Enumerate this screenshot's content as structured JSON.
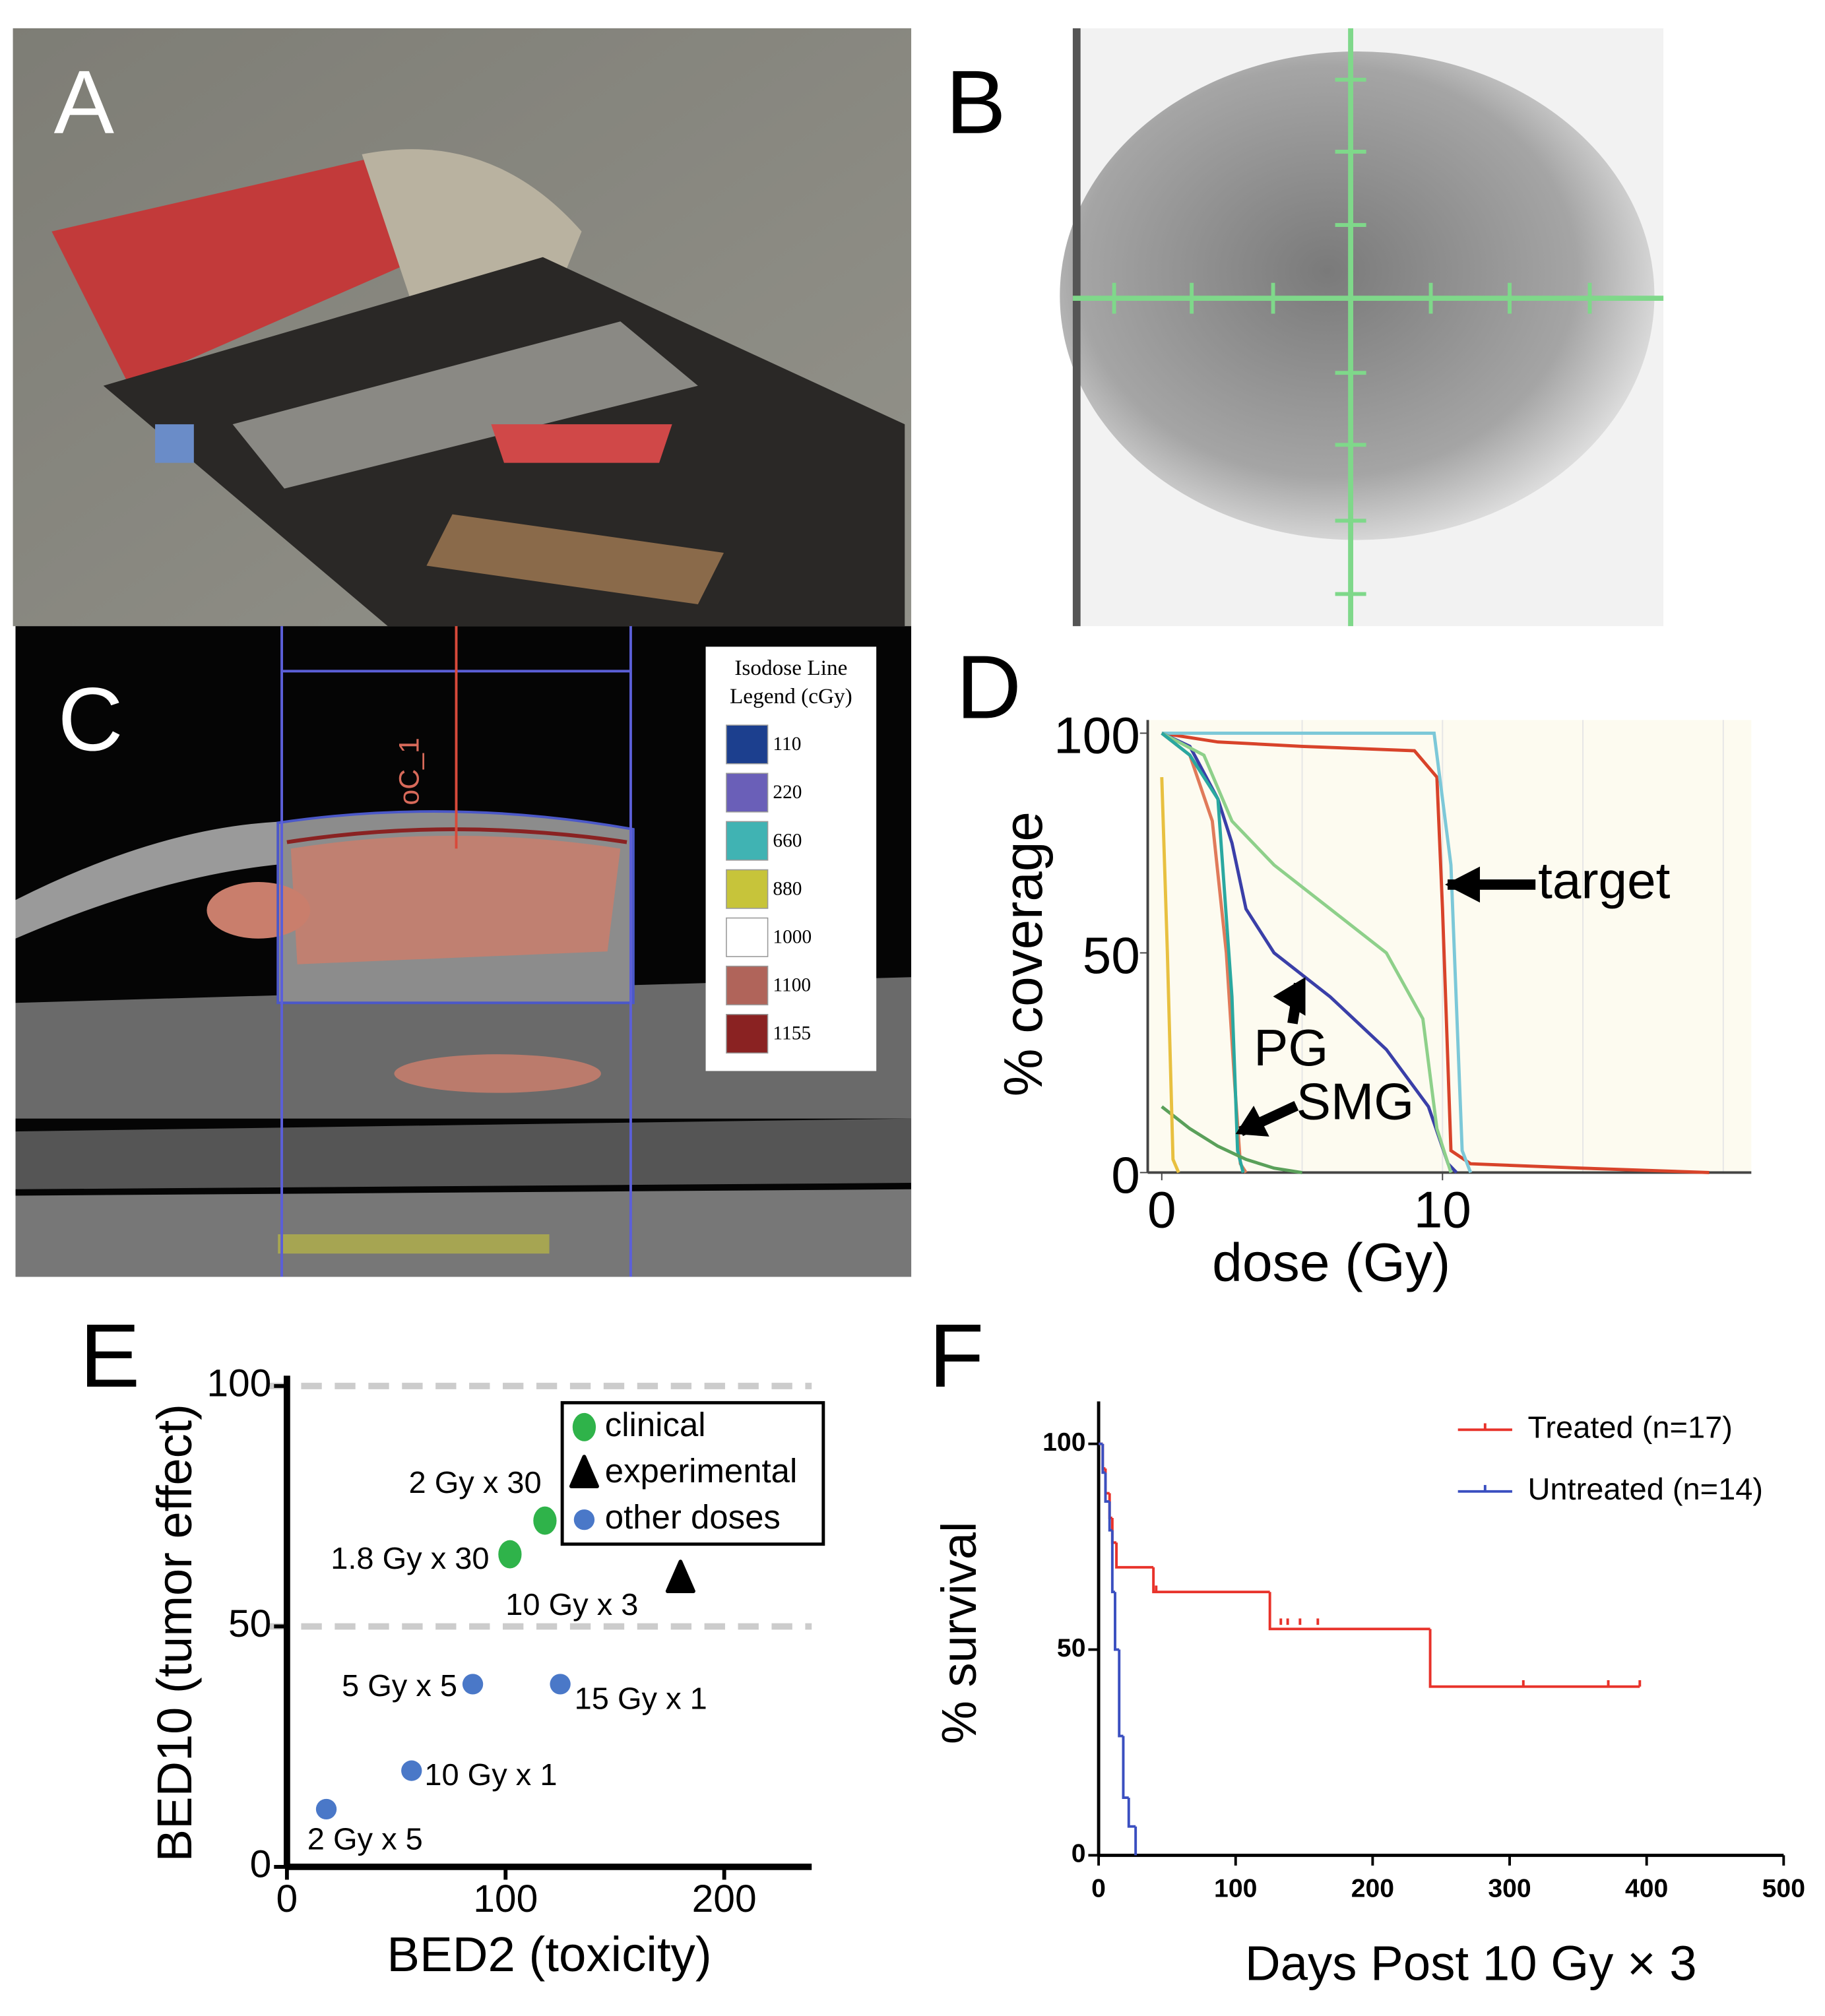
{
  "figure": {
    "panels": [
      "A",
      "B",
      "C",
      "D",
      "E",
      "F"
    ],
    "c_roi_label": "oC_1",
    "c_legend": {
      "title_lines": [
        "Isodose Line",
        "Legend (cGy)"
      ],
      "entries": [
        {
          "label": 110,
          "color": "#1c3f8e"
        },
        {
          "label": 220,
          "color": "#6a5fb8"
        },
        {
          "label": 660,
          "color": "#40b3b3"
        },
        {
          "label": 880,
          "color": "#c7c43a"
        },
        {
          "label": 1000,
          "color": "#ffffff"
        },
        {
          "label": 1100,
          "color": "#b0645a"
        },
        {
          "label": 1155,
          "color": "#8a2222"
        }
      ]
    }
  },
  "chart_data": [
    {
      "type": "line",
      "xlabel": "dose (Gy)",
      "ylabel": "% coverage",
      "xlim": [
        -0.5,
        21
      ],
      "ylim": [
        0,
        103
      ],
      "xticks": [
        0,
        10
      ],
      "yticks": [
        0,
        50,
        100
      ],
      "annotations": [
        "target",
        "PG",
        "SMG"
      ],
      "series": [
        {
          "color": "#d8432a",
          "x": [
            0,
            2,
            5,
            9,
            9.8,
            10,
            10.3,
            11,
            15,
            19.5
          ],
          "values": [
            100,
            98,
            97,
            96,
            90,
            60,
            5,
            2,
            1,
            0
          ]
        },
        {
          "color": "#7cc8d8",
          "x": [
            0,
            9.7,
            10.3,
            10.7,
            11
          ],
          "values": [
            100,
            100,
            70,
            5,
            0
          ]
        },
        {
          "color": "#3a3fa8",
          "x": [
            0,
            1,
            2,
            2.5,
            3,
            4,
            6,
            8,
            9.5,
            10.2,
            10.5
          ],
          "values": [
            100,
            97,
            85,
            75,
            60,
            50,
            40,
            28,
            15,
            2,
            0
          ]
        },
        {
          "color": "#8ed08a",
          "x": [
            0,
            1.5,
            2.5,
            4,
            6,
            8,
            9.3,
            9.8,
            10.3
          ],
          "values": [
            100,
            95,
            80,
            70,
            60,
            50,
            35,
            10,
            0
          ]
        },
        {
          "color": "#e07a5a",
          "x": [
            0,
            1,
            1.8,
            2.3,
            2.6,
            2.8,
            3
          ],
          "values": [
            100,
            95,
            80,
            50,
            20,
            2,
            0
          ]
        },
        {
          "color": "#2aa8a0",
          "x": [
            0,
            1,
            2,
            2.5,
            2.7,
            2.9
          ],
          "values": [
            100,
            95,
            85,
            40,
            5,
            0
          ]
        },
        {
          "color": "#5aa05a",
          "x": [
            0,
            1,
            2,
            3,
            4,
            5
          ],
          "values": [
            15,
            10,
            6,
            3,
            1,
            0
          ]
        },
        {
          "color": "#e8c040",
          "x": [
            0,
            0.2,
            0.4,
            0.6
          ],
          "values": [
            90,
            50,
            3,
            0
          ]
        }
      ]
    },
    {
      "type": "scatter",
      "xlabel": "BED2 (toxicity)",
      "ylabel": "BED10 (tumor effect)",
      "xlim": [
        0,
        240
      ],
      "ylim": [
        0,
        100
      ],
      "xticks": [
        0,
        100,
        200
      ],
      "yticks": [
        0,
        50,
        100
      ],
      "reference_lines": [
        50,
        100
      ],
      "series": [
        {
          "name": "clinical",
          "color": "#2fb34a",
          "marker": "diamond",
          "x": [
            102,
            118
          ],
          "values": [
            65,
            72
          ],
          "labels": [
            "1.8 Gy x 30",
            "2 Gy x 30"
          ]
        },
        {
          "name": "experimental",
          "color": "#000000",
          "marker": "triangle",
          "x": [
            180
          ],
          "values": [
            60
          ],
          "labels": [
            "10 Gy x 3"
          ]
        },
        {
          "name": "other doses",
          "color": "#4a78c8",
          "marker": "circle",
          "x": [
            85,
            125,
            57,
            18
          ],
          "values": [
            38,
            38,
            20,
            12
          ],
          "labels": [
            "5 Gy x 5",
            "15 Gy x 1",
            "10 Gy x 1",
            "2 Gy x 5"
          ]
        }
      ]
    },
    {
      "type": "step",
      "xlabel": "Days Post 10 Gy × 3",
      "ylabel": "% survival",
      "xlim": [
        0,
        500
      ],
      "ylim": [
        0,
        105
      ],
      "xticks": [
        0,
        100,
        200,
        300,
        400,
        500
      ],
      "yticks": [
        0,
        50,
        100
      ],
      "series": [
        {
          "name": "Treated (n=17)",
          "color": "#e8322a",
          "x": [
            0,
            3,
            5,
            8,
            10,
            13,
            40,
            125,
            242,
            395
          ],
          "values": [
            100,
            94,
            88,
            82,
            76,
            70,
            64,
            55,
            41,
            41
          ],
          "censor_x": [
            42,
            133,
            138,
            147,
            160,
            310,
            372,
            395
          ],
          "censor_values": [
            64,
            56,
            56,
            56,
            56,
            41,
            41,
            41
          ]
        },
        {
          "name": "Untreated (n=14)",
          "color": "#3a4fc0",
          "x": [
            0,
            3,
            5,
            8,
            10,
            12,
            15,
            18,
            22,
            27
          ],
          "values": [
            100,
            93,
            86,
            79,
            64,
            50,
            29,
            14,
            7,
            0
          ],
          "censor_x": [],
          "censor_values": []
        }
      ]
    }
  ]
}
